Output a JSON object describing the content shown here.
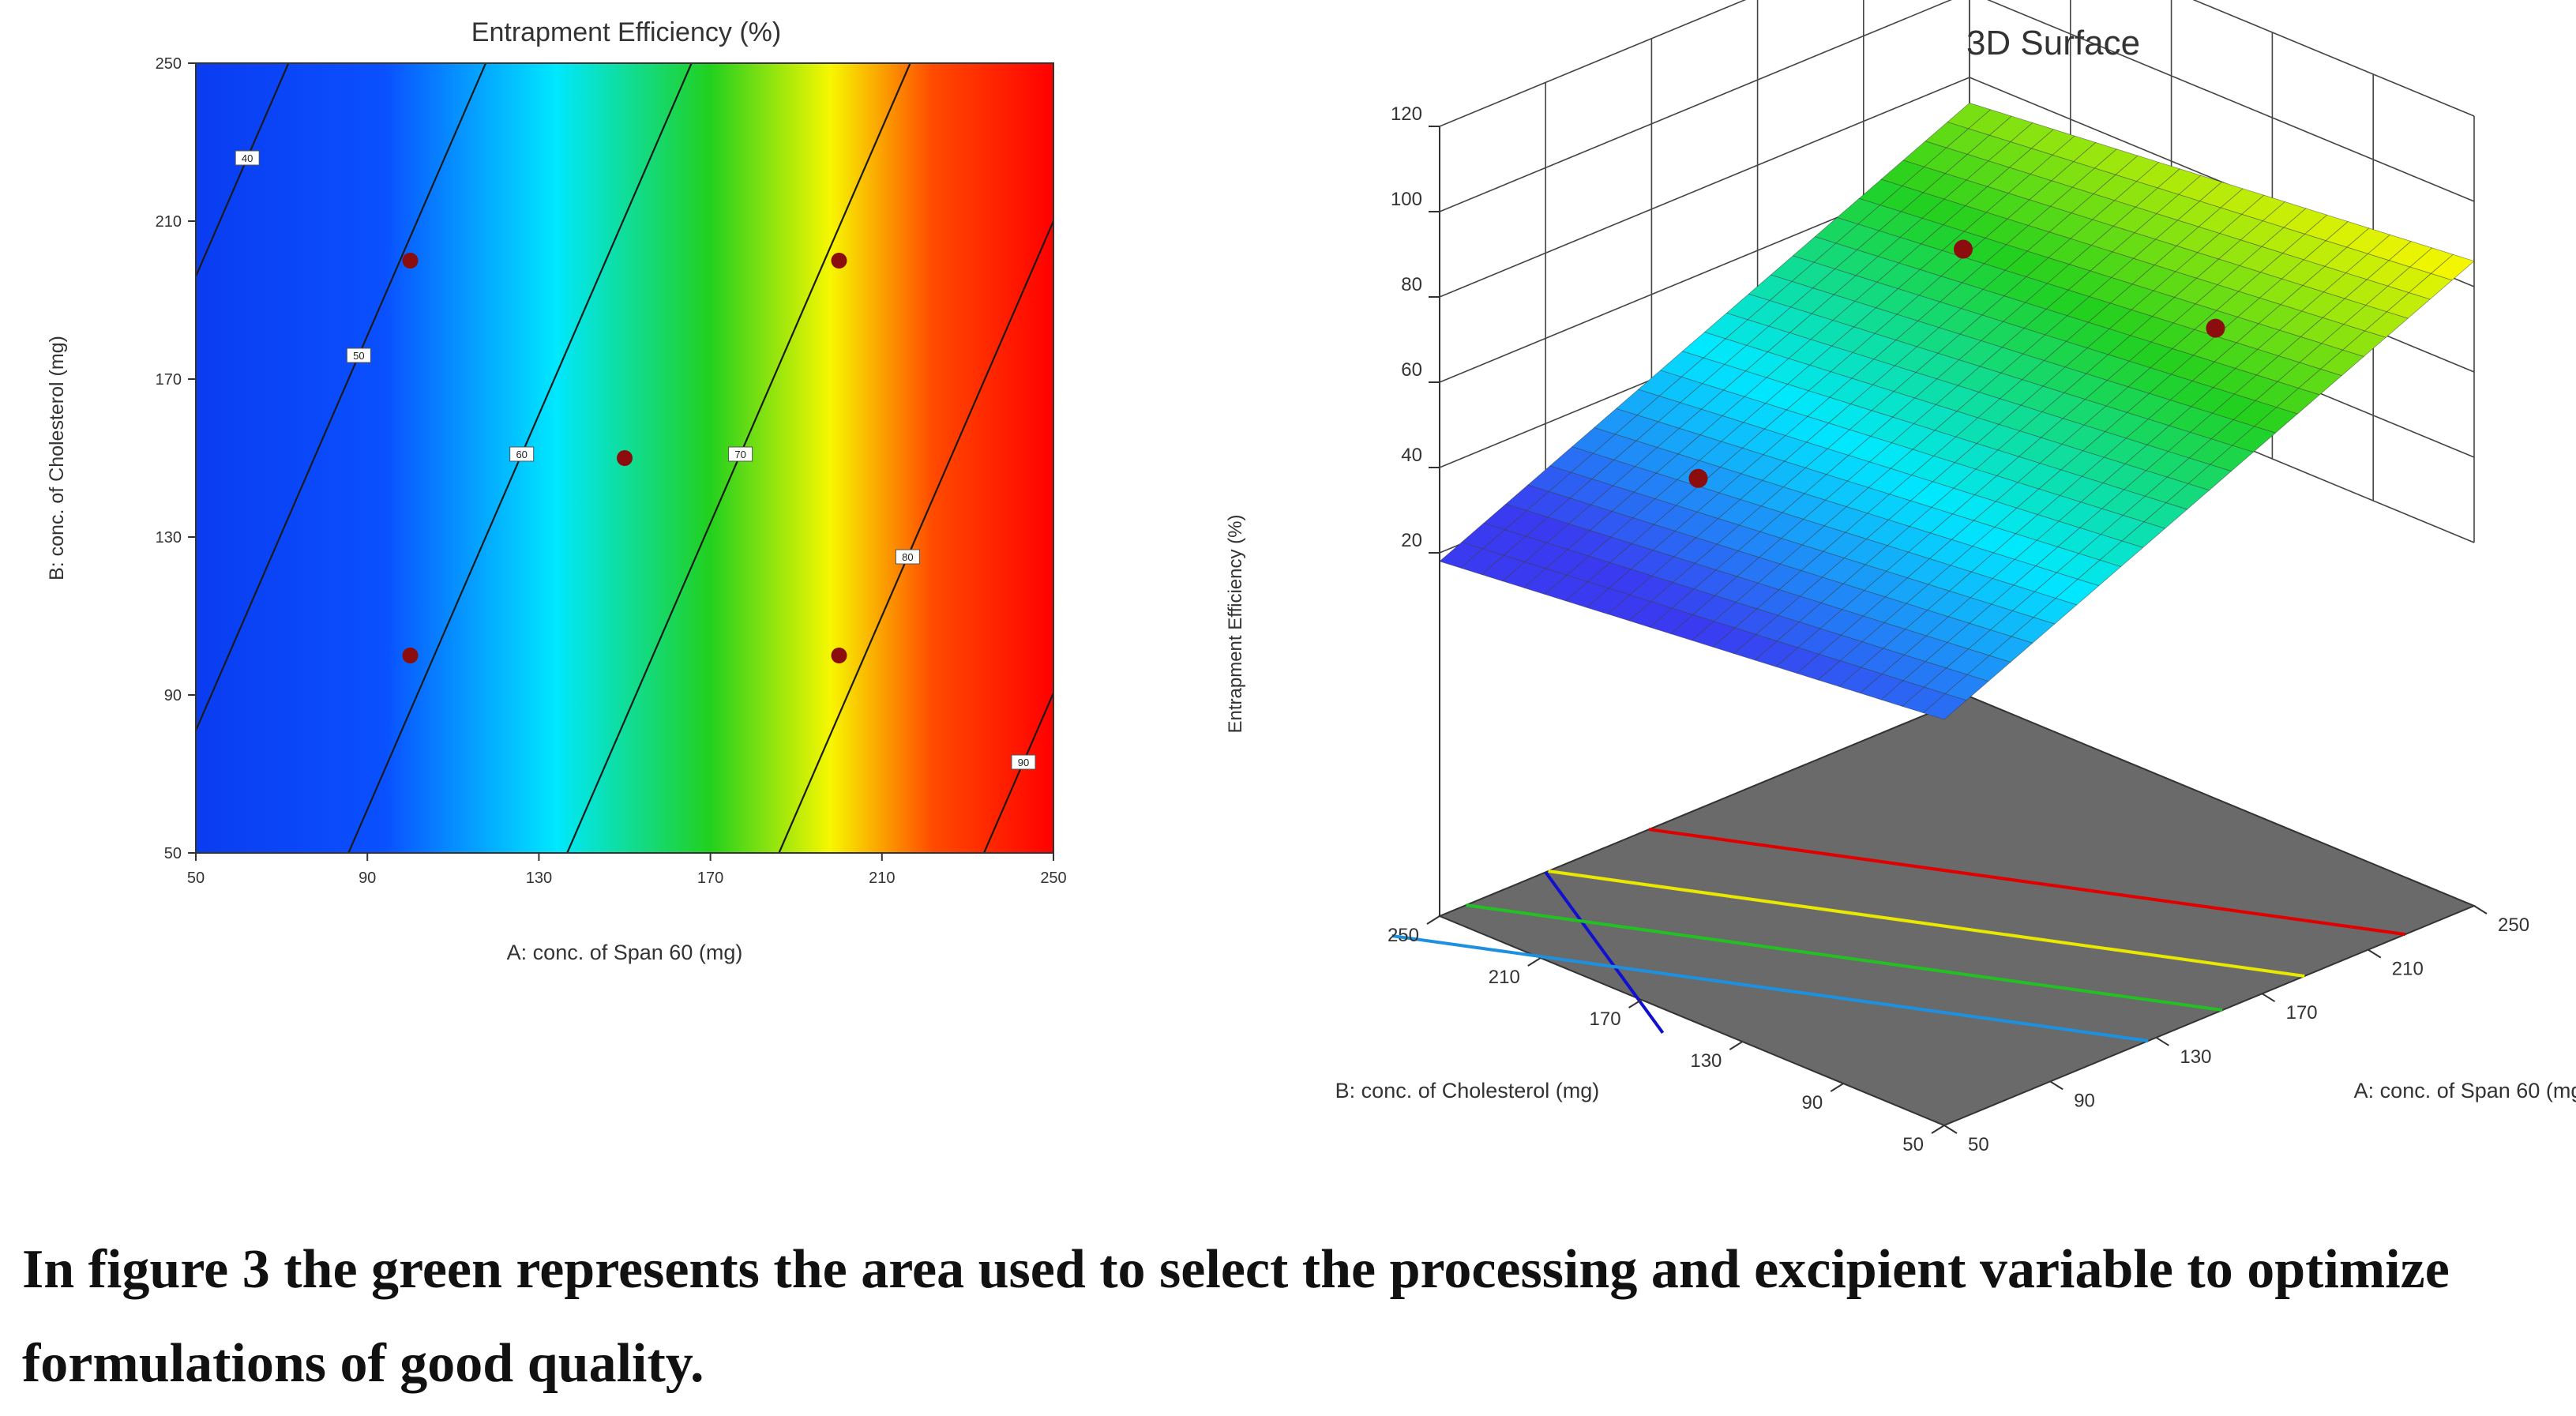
{
  "chart_data": [
    {
      "type": "contour",
      "title": "Entrapment Efficiency (%)",
      "xlabel": "A: conc. of Span 60 (mg)",
      "ylabel": "B: conc. of Cholesterol (mg)",
      "xlim": [
        50,
        250
      ],
      "ylim": [
        50,
        250
      ],
      "x_ticks": [
        "50",
        "90",
        "130",
        "170",
        "210",
        "250"
      ],
      "y_ticks": [
        "50",
        "90",
        "130",
        "170",
        "210",
        "250"
      ],
      "contour_levels": [
        {
          "label": "40",
          "x": 62,
          "y": 226
        },
        {
          "label": "50",
          "x": 88,
          "y": 176
        },
        {
          "label": "60",
          "x": 126,
          "y": 151
        },
        {
          "label": "70",
          "x": 177,
          "y": 151
        },
        {
          "label": "80",
          "x": 216,
          "y": 125
        },
        {
          "label": "90",
          "x": 243,
          "y": 73
        }
      ],
      "design_points": [
        {
          "x": 100,
          "y": 200
        },
        {
          "x": 200,
          "y": 200
        },
        {
          "x": 150,
          "y": 150
        },
        {
          "x": 100,
          "y": 100
        },
        {
          "x": 200,
          "y": 100
        }
      ],
      "colorscale": [
        "#0a3cf0",
        "#00e8ff",
        "#22d01e",
        "#f7f700",
        "#ff0000"
      ]
    },
    {
      "type": "surface",
      "title": "3D Surface",
      "xlabel": "A: conc. of Span 60 (mg)",
      "ylabel": "B: conc. of Cholesterol (mg)",
      "zlabel": "Entrapment Efficiency (%)",
      "xlim": [
        50,
        250
      ],
      "ylim": [
        50,
        250
      ],
      "zlim": [
        20,
        120
      ],
      "x_ticks": [
        "50",
        "90",
        "130",
        "170",
        "210",
        "250"
      ],
      "y_ticks": [
        "50",
        "90",
        "130",
        "170",
        "210",
        "250"
      ],
      "z_ticks": [
        "20",
        "40",
        "60",
        "80",
        "100",
        "120"
      ],
      "design_points": [
        {
          "x": 100,
          "y": 200,
          "z": 63
        },
        {
          "x": 200,
          "y": 200,
          "z": 94
        },
        {
          "x": 200,
          "y": 100,
          "z": 100
        }
      ],
      "floor_contours": [
        "#1010d0",
        "#1e90e0",
        "#22c022",
        "#e8e800",
        "#e00000"
      ],
      "colorscale": [
        "#3a3af0",
        "#00e8ff",
        "#22d01e",
        "#f7f700",
        "#ff2020"
      ]
    }
  ],
  "caption": "In figure 3 the green represents the area used to select the processing and excipient variable to optimize formulations of good quality."
}
